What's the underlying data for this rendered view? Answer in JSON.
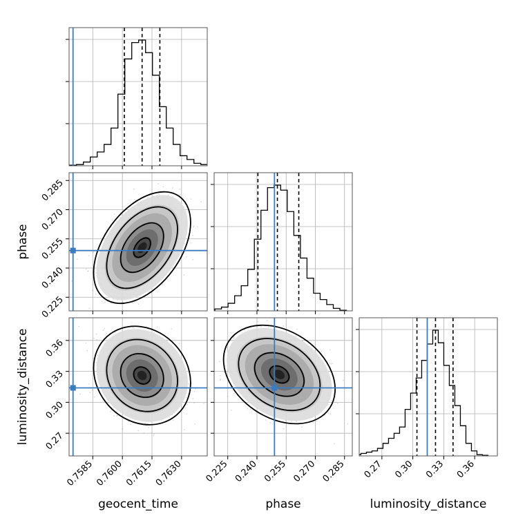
{
  "colors": {
    "truth": "#3b7bbf",
    "hist": "#000000",
    "grid": "#b0b0b0",
    "frame": "#555555"
  },
  "chart_data": {
    "type": "corner",
    "parameters": [
      "geocent_time",
      "phase",
      "luminosity_distance"
    ],
    "truths": {
      "geocent_time": 0.7575,
      "phase": 0.249,
      "luminosity_distance": 0.314
    },
    "ranges": {
      "geocent_time": [
        0.7573,
        0.7643
      ],
      "phase": [
        0.218,
        0.289
      ],
      "luminosity_distance": [
        0.248,
        0.382
      ]
    },
    "ticks": {
      "geocent_time": [
        "0.7585",
        "0.7600",
        "0.7615",
        "0.7630"
      ],
      "phase": [
        "0.225",
        "0.240",
        "0.255",
        "0.270",
        "0.285"
      ],
      "luminosity_distance": [
        "0.27",
        "0.30",
        "0.33",
        "0.36"
      ]
    },
    "quantiles": {
      "geocent_time": [
        0.7601,
        0.761,
        0.7619
      ],
      "phase": [
        0.2405,
        0.2505,
        0.2615
      ],
      "luminosity_distance": [
        0.304,
        0.322,
        0.339
      ]
    },
    "histograms": {
      "geocent_time": [
        0.5,
        1,
        3,
        7,
        11,
        17,
        30,
        57,
        85,
        98,
        100,
        90,
        72,
        47,
        30,
        17,
        8,
        5,
        2,
        1
      ],
      "phase": [
        0.5,
        1.5,
        3,
        6,
        12,
        20,
        33,
        57,
        80,
        98,
        100,
        96,
        79,
        60,
        42,
        26,
        14,
        9,
        5,
        2,
        0.5
      ],
      "luminosity_distance": [
        0.5,
        1,
        2,
        3,
        4,
        6,
        10,
        14,
        18,
        23,
        37,
        50,
        62,
        76,
        89,
        100,
        90,
        72,
        56,
        40,
        24,
        10,
        4,
        1,
        0.5
      ]
    },
    "scatter_2d": [
      {
        "x": "geocent_time",
        "y": "phase",
        "center": [
          0.761,
          0.2505
        ],
        "rho": 0.45
      },
      {
        "x": "geocent_time",
        "y": "luminosity_distance",
        "center": [
          0.761,
          0.326
        ],
        "rho": -0.15
      },
      {
        "x": "phase",
        "y": "luminosity_distance",
        "center": [
          0.2515,
          0.327
        ],
        "rho": -0.3
      }
    ]
  }
}
